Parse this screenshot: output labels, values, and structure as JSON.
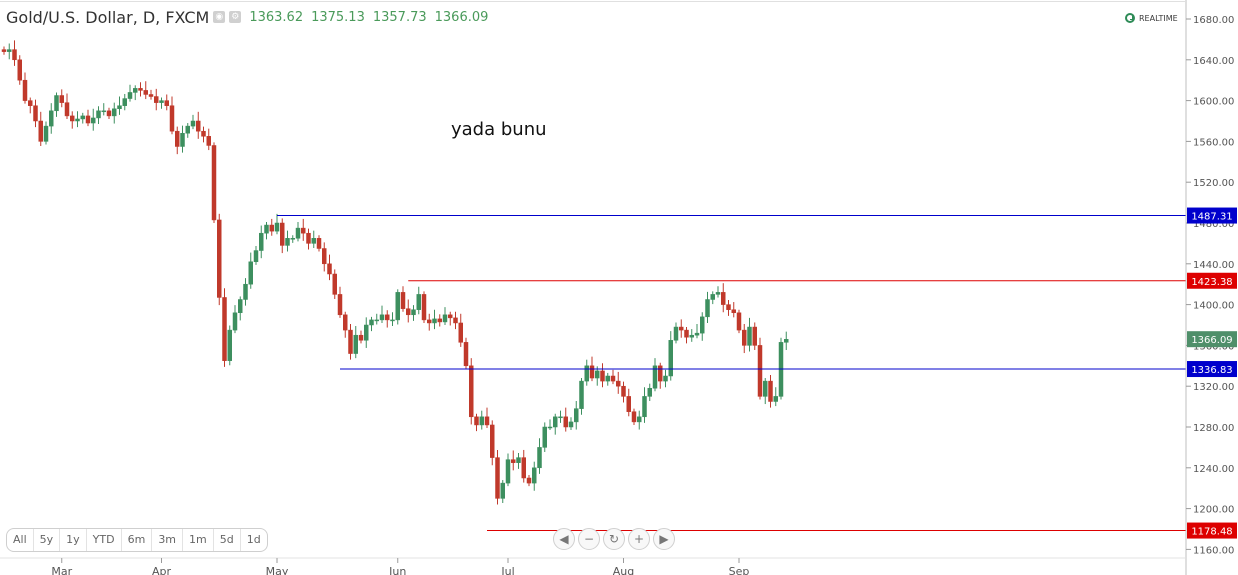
{
  "header": {
    "title": "Gold/U.S. Dollar, D, FXCM",
    "open": "1363.62",
    "high": "1375.13",
    "low": "1357.73",
    "close": "1366.09"
  },
  "realtime_label": "REALTIME",
  "annotation": "yada bunu",
  "range_buttons": [
    "All",
    "5y",
    "1y",
    "YTD",
    "6m",
    "3m",
    "1m",
    "5d",
    "1d"
  ],
  "nav_buttons": [
    "scroll-left",
    "zoom-out",
    "reset",
    "zoom-in",
    "scroll-right"
  ],
  "colors": {
    "up": "#3d8f5f",
    "down": "#c0392b",
    "support_line": "#0000cc",
    "resistance_line": "#dd0000",
    "last_price": "#4f8f6a"
  },
  "chart_data": {
    "type": "candlestick",
    "title": "Gold/U.S. Dollar, D, FXCM",
    "ylim": [
      1160,
      1680
    ],
    "y_ticks": [
      1680,
      1640,
      1600,
      1560,
      1520,
      1480,
      1440,
      1400,
      1360,
      1320,
      1280,
      1240,
      1200,
      1160
    ],
    "y_tick_labels": [
      "1680.00",
      "1640.00",
      "1600.00",
      "1560.00",
      "1520.00",
      "1480.00",
      "1440.00",
      "1400.00",
      "1360.00",
      "1320.00",
      "1280.00",
      "1240.00",
      "1200.00",
      "1160.00"
    ],
    "x_ticks": [
      "Mar",
      "Apr",
      "May",
      "Jun",
      "Jul",
      "Aug",
      "Sep"
    ],
    "x_tick_candle_index": [
      11,
      30,
      52,
      75,
      96,
      118,
      140
    ],
    "horizontal_lines": [
      {
        "price": 1487.31,
        "label": "1487.31",
        "color": "#0000cc",
        "from_index": 52
      },
      {
        "price": 1423.38,
        "label": "1423.38",
        "color": "#dd0000",
        "from_index": 77
      },
      {
        "price": 1336.83,
        "label": "1336.83",
        "color": "#0000cc",
        "from_index": 64
      },
      {
        "price": 1178.48,
        "label": "1178.48",
        "color": "#dd0000",
        "from_index": 92
      }
    ],
    "last_price": {
      "price": 1366.09,
      "label": "1366.09"
    },
    "closes": [
      1648,
      1650,
      1640,
      1620,
      1600,
      1595,
      1580,
      1560,
      1575,
      1590,
      1605,
      1598,
      1585,
      1580,
      1582,
      1585,
      1578,
      1583,
      1590,
      1590,
      1585,
      1592,
      1595,
      1602,
      1608,
      1612,
      1610,
      1606,
      1604,
      1598,
      1600,
      1595,
      1570,
      1555,
      1568,
      1575,
      1580,
      1570,
      1565,
      1556,
      1483,
      1407,
      1345,
      1375,
      1392,
      1405,
      1420,
      1442,
      1453,
      1470,
      1478,
      1472,
      1480,
      1458,
      1465,
      1465,
      1475,
      1470,
      1460,
      1465,
      1455,
      1440,
      1430,
      1410,
      1390,
      1375,
      1352,
      1370,
      1365,
      1380,
      1385,
      1385,
      1390,
      1385,
      1385,
      1412,
      1396,
      1390,
      1395,
      1410,
      1385,
      1382,
      1386,
      1383,
      1390,
      1387,
      1382,
      1363,
      1340,
      1290,
      1282,
      1290,
      1282,
      1250,
      1210,
      1225,
      1248,
      1245,
      1250,
      1230,
      1225,
      1240,
      1260,
      1280,
      1280,
      1290,
      1290,
      1280,
      1285,
      1298,
      1325,
      1340,
      1328,
      1335,
      1325,
      1330,
      1325,
      1320,
      1310,
      1295,
      1285,
      1290,
      1310,
      1318,
      1340,
      1325,
      1330,
      1365,
      1378,
      1375,
      1368,
      1370,
      1372,
      1388,
      1405,
      1410,
      1412,
      1400,
      1395,
      1392,
      1375,
      1360,
      1378,
      1360,
      1310,
      1325,
      1305,
      1310,
      1363,
      1366
    ]
  }
}
